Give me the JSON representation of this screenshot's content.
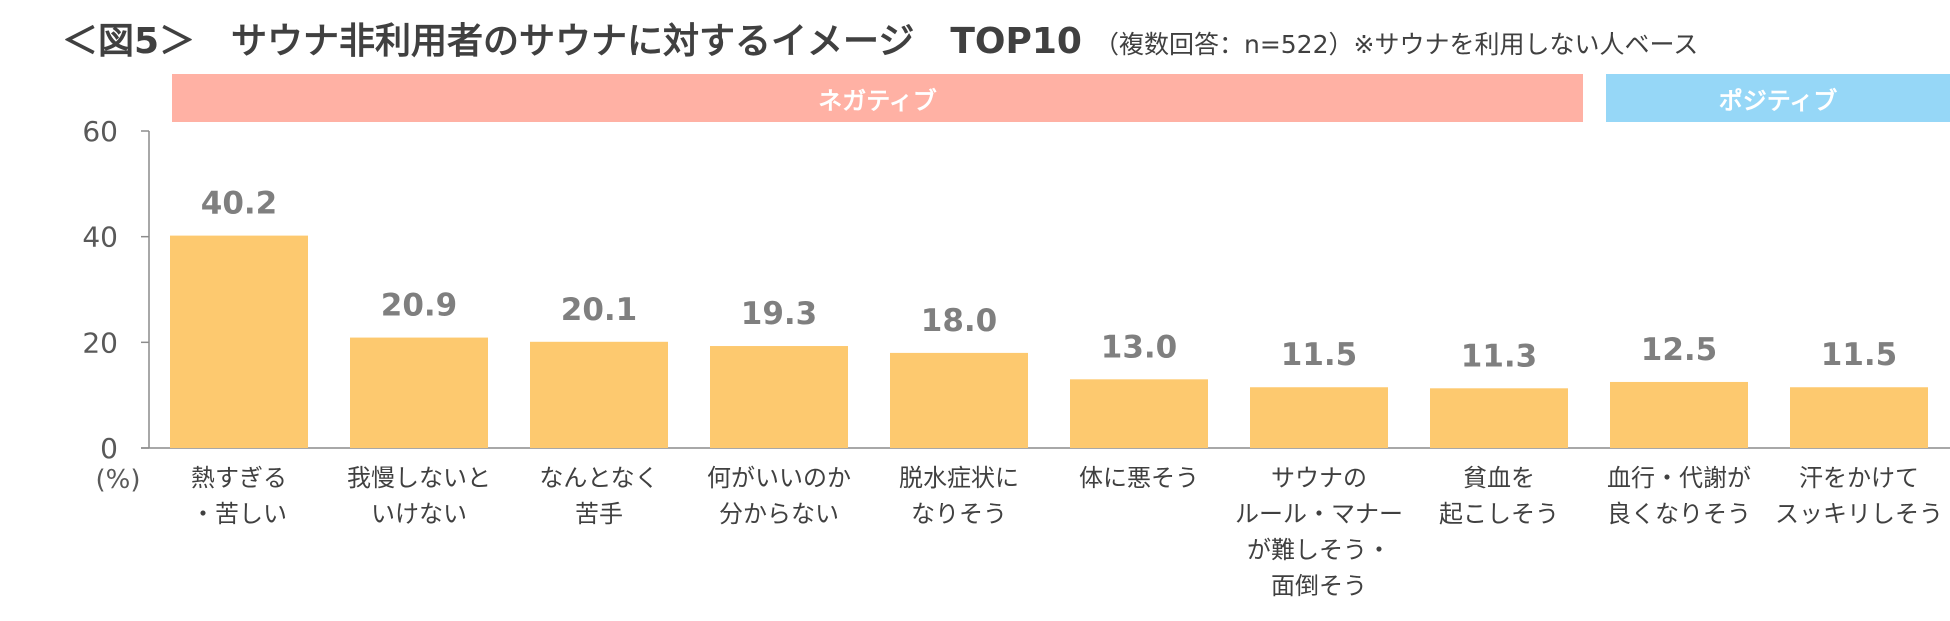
{
  "title": {
    "main": "＜図5＞　サウナ非利用者のサウナに対するイメージ　TOP10",
    "note": "（複数回答：n=522）※サウナを利用しない人ベース"
  },
  "groups": {
    "negative_label": "ネガティブ",
    "positive_label": "ポジティブ",
    "negative_color": "#ffb1a4",
    "positive_color": "#96d7f7"
  },
  "chart_data": {
    "type": "bar",
    "categories": [
      [
        "熱すぎる",
        "・苦しい"
      ],
      [
        "我慢しないと",
        "いけない"
      ],
      [
        "なんとなく",
        "苦手"
      ],
      [
        "何がいいのか",
        "分からない"
      ],
      [
        "脱水症状に",
        "なりそう"
      ],
      [
        "体に悪そう"
      ],
      [
        "サウナの",
        "ルール・マナー",
        "が難しそう・",
        "面倒そう"
      ],
      [
        "貧血を",
        "起こしそう"
      ],
      [
        "血行・代謝が",
        "良くなりそう"
      ],
      [
        "汗をかけて",
        "スッキリしそう"
      ]
    ],
    "values": [
      40.2,
      20.9,
      20.1,
      19.3,
      18.0,
      13.0,
      11.5,
      11.3,
      12.5,
      11.5
    ],
    "value_labels": [
      "40.2",
      "20.9",
      "20.1",
      "19.3",
      "18.0",
      "13.0",
      "11.5",
      "11.3",
      "12.5",
      "11.5"
    ],
    "ylim": [
      0,
      60
    ],
    "yticks": [
      "0",
      "20",
      "40",
      "60"
    ],
    "ylabel": "(%)",
    "grid": false,
    "bar_color": "#fdc96f"
  }
}
